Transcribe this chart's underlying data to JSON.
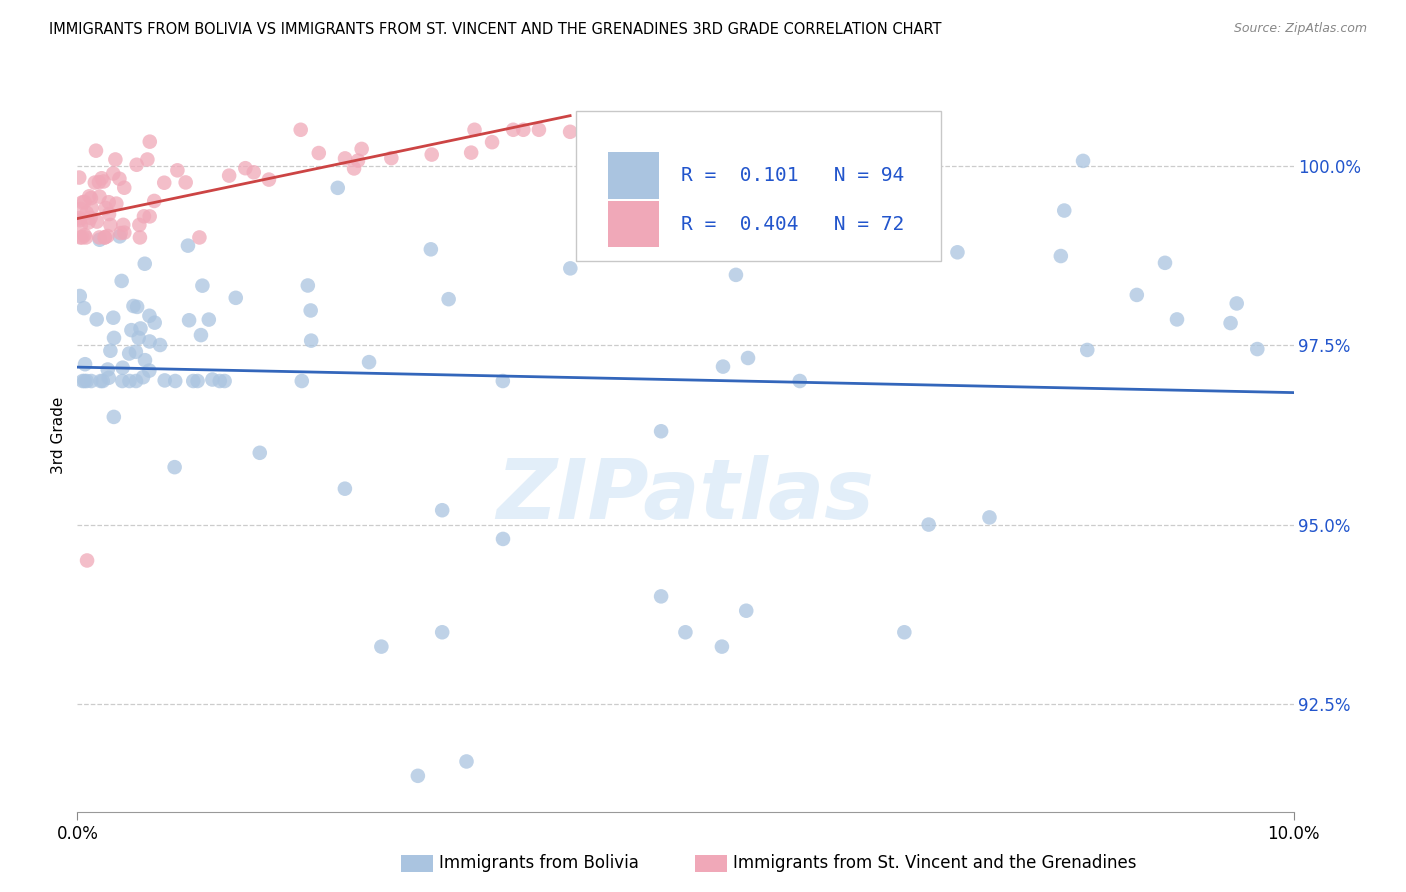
{
  "title": "IMMIGRANTS FROM BOLIVIA VS IMMIGRANTS FROM ST. VINCENT AND THE GRENADINES 3RD GRADE CORRELATION CHART",
  "source": "Source: ZipAtlas.com",
  "xlabel_bolivia": "Immigrants from Bolivia",
  "xlabel_stv": "Immigrants from St. Vincent and the Grenadines",
  "ylabel": "3rd Grade",
  "xlim": [
    0.0,
    10.0
  ],
  "ylim": [
    91.0,
    101.5
  ],
  "yticks": [
    92.5,
    95.0,
    97.5,
    100.0
  ],
  "ytick_labels": [
    "92.5%",
    "95.0%",
    "97.5%",
    "100.0%"
  ],
  "r_bolivia": 0.101,
  "n_bolivia": 94,
  "r_stv": 0.404,
  "n_stv": 72,
  "color_bolivia": "#aac4e0",
  "color_stv": "#f0a8b8",
  "line_color_bolivia": "#3366bb",
  "line_color_stv": "#cc4444",
  "watermark_text": "ZIPatlas",
  "watermark_color": "#d0e4f5",
  "tick_color": "#2255cc",
  "title_fontsize": 10.5,
  "source_fontsize": 9,
  "ylabel_fontsize": 11,
  "legend_fontsize": 14
}
